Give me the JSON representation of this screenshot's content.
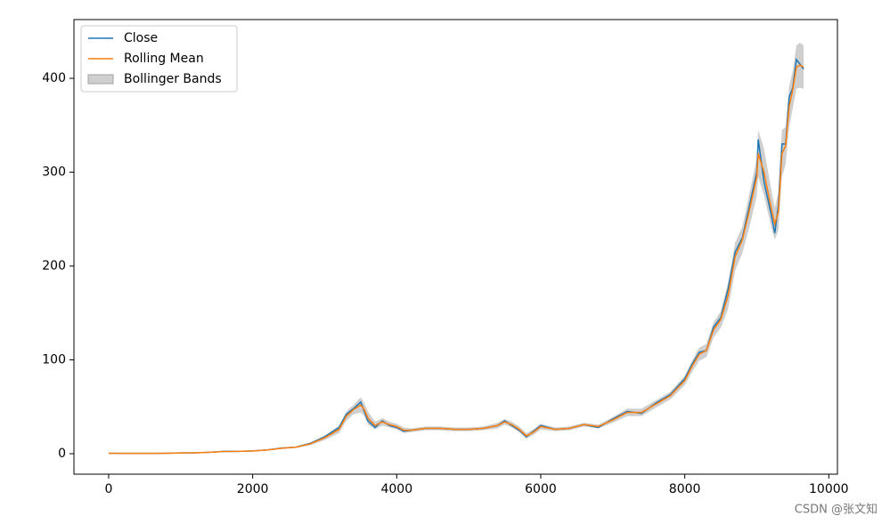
{
  "chart_data": {
    "type": "line",
    "x": [
      0,
      200,
      400,
      600,
      800,
      1000,
      1200,
      1400,
      1600,
      1800,
      2000,
      2200,
      2400,
      2600,
      2800,
      3000,
      3200,
      3300,
      3400,
      3500,
      3550,
      3600,
      3700,
      3800,
      3900,
      4000,
      4100,
      4200,
      4400,
      4600,
      4800,
      5000,
      5200,
      5400,
      5500,
      5600,
      5700,
      5800,
      5900,
      6000,
      6200,
      6400,
      6600,
      6800,
      7000,
      7200,
      7400,
      7600,
      7800,
      8000,
      8100,
      8200,
      8300,
      8400,
      8500,
      8600,
      8700,
      8800,
      8900,
      9000,
      9020,
      9100,
      9200,
      9250,
      9300,
      9350,
      9400,
      9450,
      9500,
      9550,
      9600,
      9650
    ],
    "series": [
      {
        "name": "Close",
        "color": "#1f77b4",
        "values": [
          0.5,
          0.4,
          0.4,
          0.4,
          0.5,
          0.8,
          1,
          1.5,
          2.5,
          2.5,
          3,
          4,
          6,
          7,
          11,
          18,
          28,
          42,
          48,
          55,
          45,
          35,
          28,
          35,
          30,
          28,
          24,
          25,
          27,
          27,
          26,
          26,
          27,
          30,
          35,
          30,
          25,
          18,
          24,
          30,
          26,
          27,
          31,
          28,
          37,
          45,
          43,
          54,
          63,
          80,
          95,
          108,
          110,
          135,
          145,
          175,
          215,
          230,
          265,
          300,
          335,
          290,
          255,
          235,
          265,
          330,
          330,
          380,
          390,
          420,
          415,
          410
        ]
      },
      {
        "name": "Rolling Mean",
        "color": "#ff7f0e",
        "values": [
          0.5,
          0.4,
          0.4,
          0.4,
          0.5,
          0.8,
          1,
          1.5,
          2.4,
          2.5,
          3,
          3.9,
          5.8,
          7,
          10.5,
          17,
          26,
          40,
          47,
          52,
          47,
          38,
          30,
          34,
          31,
          29,
          25,
          25,
          27,
          27,
          26,
          26,
          27,
          30,
          34,
          31,
          26,
          19,
          23,
          29,
          26,
          27,
          31,
          29,
          36,
          44,
          44,
          53,
          62,
          78,
          93,
          106,
          110,
          132,
          143,
          168,
          210,
          228,
          260,
          295,
          320,
          300,
          262,
          245,
          258,
          320,
          328,
          370,
          388,
          412,
          414,
          412
        ]
      }
    ],
    "bands": {
      "name": "Bollinger Bands",
      "color": "#a0a0a0",
      "upper": [
        0.7,
        0.6,
        0.6,
        0.6,
        0.7,
        1.1,
        1.3,
        1.9,
        2.9,
        3,
        3.5,
        4.5,
        6.6,
        7.8,
        12,
        19.5,
        30,
        45,
        52,
        60,
        54,
        45,
        34,
        38,
        34,
        32,
        28,
        27,
        29,
        29,
        28,
        28,
        29,
        33,
        37,
        34,
        29,
        22,
        26,
        32,
        28,
        29,
        33,
        31,
        39,
        48,
        48,
        57,
        66,
        83,
        99,
        113,
        117,
        140,
        152,
        182,
        225,
        242,
        278,
        315,
        345,
        325,
        282,
        262,
        278,
        345,
        348,
        392,
        408,
        435,
        438,
        435
      ],
      "lower": [
        0.3,
        0.2,
        0.2,
        0.2,
        0.3,
        0.5,
        0.7,
        1.1,
        1.9,
        2,
        2.5,
        3.3,
        5,
        6.2,
        9,
        14.5,
        22,
        35,
        42,
        44,
        40,
        31,
        26,
        30,
        28,
        26,
        22,
        23,
        25,
        25,
        24,
        24,
        25,
        27,
        31,
        28,
        23,
        16,
        20,
        26,
        24,
        25,
        29,
        27,
        33,
        40,
        40,
        49,
        58,
        73,
        87,
        99,
        103,
        124,
        134,
        154,
        195,
        214,
        242,
        275,
        295,
        275,
        242,
        228,
        238,
        295,
        308,
        348,
        368,
        389,
        390,
        389
      ]
    },
    "xlim": [
      -482,
      10120
    ],
    "ylim": [
      -21.8,
      462.6
    ],
    "xticks": [
      0,
      2000,
      4000,
      6000,
      8000,
      10000
    ],
    "yticks": [
      0,
      100,
      200,
      300,
      400
    ],
    "legend": "upper left",
    "watermark": "CSDN @张文知"
  }
}
